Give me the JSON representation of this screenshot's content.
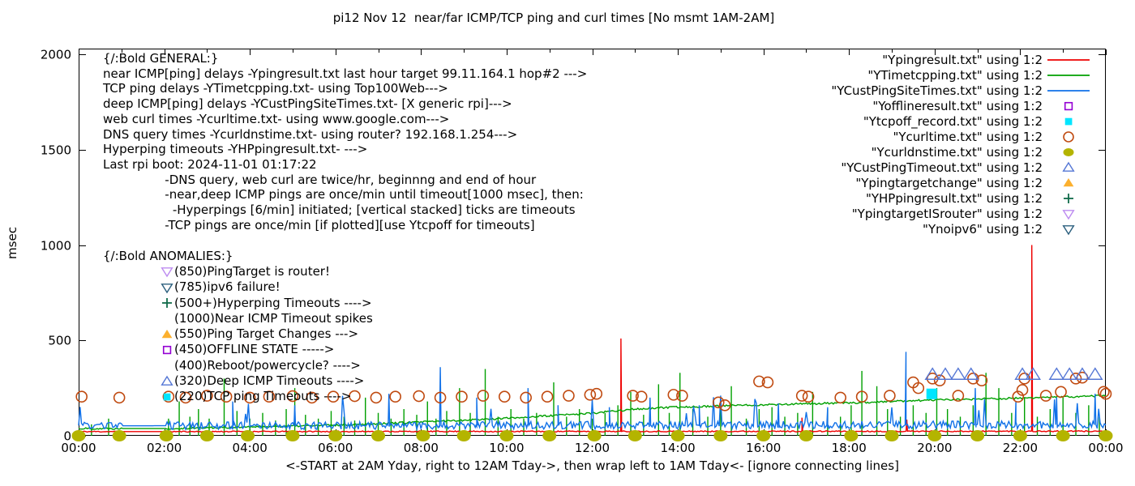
{
  "title": "pi12 Nov 12  near/far ICMP/TCP ping and curl times [No msmt 1AM-2AM]",
  "ylabel": "msec",
  "xlabel": "<-START at 2AM Yday, right to 12AM Tday->, then wrap left to 1AM Tday<- [ignore connecting lines]",
  "annotations": {
    "general_lines": [
      "{/:Bold GENERAL:}",
      "near ICMP[ping] delays -Ypingresult.txt last hour target 99.11.164.1 hop#2 --->",
      "TCP ping delays -YTimetcpping.txt- using Top100Web--->",
      "deep ICMP[ping] delays -YCustPingSiteTimes.txt- [X generic rpi]--->",
      "web curl times -Ycurltime.txt- using www.google.com--->",
      "DNS query times -Ycurldnstime.txt- using router? 192.168.1.254--->",
      "Hyperping timeouts -YHPpingresult.txt- --->",
      "Last rpi boot: 2024-11-01 01:17:22",
      "                -DNS query, web curl are twice/hr, beginnng and end of hour",
      "                -near,deep ICMP pings are once/min until timeout[1000 msec], then:",
      "                  -Hyperpings [6/min] initiated; [vertical stacked] ticks are timeouts",
      "                -TCP pings are once/min [if plotted][use Ytcpoff for timeouts]"
    ],
    "anomalies_title": "{/:Bold ANOMALIES:}",
    "anomalies": [
      {
        "marker": "triangle-down-open",
        "color": "#bd8cf0",
        "text": "(850)PingTarget is router!"
      },
      {
        "marker": "triangle-down-open",
        "color": "#2d607f",
        "text": "(785)ipv6 failure!"
      },
      {
        "marker": "plus",
        "color": "#116b4a",
        "text": "(500+)Hyperping Timeouts ---->"
      },
      {
        "marker": "none",
        "color": "",
        "text": "(1000)Near ICMP Timeout spikes"
      },
      {
        "marker": "triangle-up-filled",
        "color": "#fcb02e",
        "text": "(550)Ping Target Changes --->"
      },
      {
        "marker": "square-open",
        "color": "#9400d3",
        "text": "(450)OFFLINE STATE ----->"
      },
      {
        "marker": "none",
        "color": "",
        "text": "(400)Reboot/powercycle? ---->"
      },
      {
        "marker": "triangle-up-open",
        "color": "#5577d5",
        "text": "(320)Deep ICMP Timeouts ---->"
      },
      {
        "marker": "square-filled",
        "color": "#00e5ff",
        "text": "(220)TCP ping Timeouts ---->"
      }
    ]
  },
  "legend": [
    {
      "label": "\"Ypingresult.txt\" using 1:2",
      "marker": "line",
      "color": "#ee0000"
    },
    {
      "label": "\"YTimetcpping.txt\" using 1:2",
      "marker": "line",
      "color": "#00a000"
    },
    {
      "label": "\"YCustPingSiteTimes.txt\" using 1:2",
      "marker": "line",
      "color": "#1171e8"
    },
    {
      "label": "\"Yofflineresult.txt\" using 1:2",
      "marker": "square-open",
      "color": "#9400d3"
    },
    {
      "label": "\"Ytcpoff_record.txt\" using 1:2",
      "marker": "square-filled",
      "color": "#00e5ff"
    },
    {
      "label": "\"Ycurltime.txt\" using 1:2",
      "marker": "circle-open",
      "color": "#c04a10"
    },
    {
      "label": "\"Ycurldnstime.txt\" using 1:2",
      "marker": "circle-filled",
      "color": "#b4b400"
    },
    {
      "label": "\"YCustPingTimeout.txt\" using 1:2",
      "marker": "triangle-up-open",
      "color": "#5577d5"
    },
    {
      "label": "\"Ypingtargetchange\" using 1:2",
      "marker": "triangle-up-filled",
      "color": "#fcb02e"
    },
    {
      "label": "\"YHPpingresult.txt\" using 1:2",
      "marker": "plus",
      "color": "#116b4a"
    },
    {
      "label": "\"YpingtargetISrouter\" using 1:2",
      "marker": "triangle-down-open",
      "color": "#bd8cf0"
    },
    {
      "label": "\"Ynoipv6\" using 1:2",
      "marker": "triangle-down-open",
      "color": "#2d607f"
    }
  ],
  "chart_data": {
    "type": "line",
    "title": "pi12 Nov 12  near/far ICMP/TCP ping and curl times [No msmt 1AM-2AM]",
    "xlabel": "<-START at 2AM Yday, right to 12AM Tday->, then wrap left to 1AM Tday<- [ignore connecting lines]",
    "ylabel": "msec",
    "xlim": [
      0,
      24
    ],
    "ylim": [
      0,
      2000
    ],
    "grid": false,
    "legend_position": "top-right",
    "xtick_hours": [
      0,
      2,
      4,
      6,
      8,
      10,
      12,
      14,
      16,
      18,
      20,
      22,
      24
    ],
    "xtick_labels": [
      "00:00",
      "02:00",
      "04:00",
      "06:00",
      "08:00",
      "10:00",
      "12:00",
      "14:00",
      "16:00",
      "18:00",
      "20:00",
      "22:00",
      "00:00"
    ],
    "yticks": [
      0,
      500,
      1000,
      1500,
      2000
    ],
    "no_measurement_gap_hours": [
      1.03,
      2.05
    ],
    "series": [
      {
        "name": "Ypingresult.txt",
        "kind": "noisy-line",
        "color": "#ee0000",
        "seed": 11,
        "noise": 3,
        "trend": [
          [
            0,
            22
          ],
          [
            24,
            24
          ]
        ],
        "spikes": [
          [
            12.67,
            510
          ],
          [
            16.9,
            95
          ],
          [
            19.35,
            85
          ],
          [
            22.27,
            1000
          ]
        ]
      },
      {
        "name": "YTimetcpping.txt",
        "kind": "noisy-line",
        "color": "#00a000",
        "seed": 22,
        "noise": 5,
        "trend": [
          [
            0,
            38
          ],
          [
            2,
            38
          ],
          [
            4,
            46
          ],
          [
            6,
            56
          ],
          [
            8,
            72
          ],
          [
            10,
            92
          ],
          [
            12,
            118
          ],
          [
            13,
            140
          ],
          [
            14,
            150
          ],
          [
            16,
            163
          ],
          [
            18,
            172
          ],
          [
            20,
            188
          ],
          [
            22,
            197
          ],
          [
            24,
            210
          ]
        ],
        "spikes": []
      },
      {
        "name": "YCustPingSiteTimes.txt",
        "kind": "noisy-line",
        "color": "#1171e8",
        "seed": 33,
        "noise": 20,
        "trend": [
          [
            0,
            52
          ],
          [
            24,
            58
          ]
        ],
        "burst": [
          0.03,
          50,
          110
        ],
        "spikes": [
          [
            3.6,
            180
          ],
          [
            5.05,
            160
          ],
          [
            7.25,
            220
          ],
          [
            8.45,
            360
          ],
          [
            9.3,
            200
          ],
          [
            10.5,
            250
          ],
          [
            11.2,
            160
          ],
          [
            12.4,
            150
          ],
          [
            13.35,
            200
          ],
          [
            14.5,
            160
          ],
          [
            16.35,
            170
          ],
          [
            17.5,
            150
          ],
          [
            19.33,
            440
          ],
          [
            20.95,
            250
          ],
          [
            21.9,
            180
          ],
          [
            22.85,
            200
          ],
          [
            23.75,
            220
          ]
        ]
      },
      {
        "name": "YHPpingresult.txt",
        "kind": "impulses",
        "color": "#00a000",
        "ticks": [
          [
            0.3,
            60
          ],
          [
            0.7,
            90
          ],
          [
            2.1,
            90
          ],
          [
            2.35,
            180
          ],
          [
            2.6,
            100
          ],
          [
            2.8,
            140
          ],
          [
            3.05,
            90
          ],
          [
            3.4,
            300
          ],
          [
            3.7,
            130
          ],
          [
            4.0,
            90
          ],
          [
            4.3,
            120
          ],
          [
            4.6,
            80
          ],
          [
            4.85,
            140
          ],
          [
            5.05,
            250
          ],
          [
            5.3,
            110
          ],
          [
            5.6,
            90
          ],
          [
            5.9,
            130
          ],
          [
            6.2,
            100
          ],
          [
            6.45,
            80
          ],
          [
            6.7,
            200
          ],
          [
            7.0,
            120
          ],
          [
            7.3,
            90
          ],
          [
            7.6,
            140
          ],
          [
            7.9,
            110
          ],
          [
            8.15,
            180
          ],
          [
            8.35,
            90
          ],
          [
            8.6,
            130
          ],
          [
            8.9,
            250
          ],
          [
            9.15,
            120
          ],
          [
            9.5,
            350
          ],
          [
            9.8,
            100
          ],
          [
            10.1,
            140
          ],
          [
            10.4,
            90
          ],
          [
            10.7,
            120
          ],
          [
            11.1,
            280
          ],
          [
            11.4,
            100
          ],
          [
            11.7,
            140
          ],
          [
            12.0,
            90
          ],
          [
            12.3,
            120
          ],
          [
            12.6,
            160
          ],
          [
            12.9,
            230
          ],
          [
            13.2,
            110
          ],
          [
            13.55,
            270
          ],
          [
            13.8,
            120
          ],
          [
            14.05,
            330
          ],
          [
            14.35,
            140
          ],
          [
            14.7,
            100
          ],
          [
            15.0,
            160
          ],
          [
            15.25,
            260
          ],
          [
            15.6,
            90
          ],
          [
            15.9,
            140
          ],
          [
            16.2,
            150
          ],
          [
            16.5,
            100
          ],
          [
            16.8,
            120
          ],
          [
            17.15,
            230
          ],
          [
            17.5,
            140
          ],
          [
            17.8,
            100
          ],
          [
            18.05,
            160
          ],
          [
            18.3,
            340
          ],
          [
            18.65,
            260
          ],
          [
            18.9,
            140
          ],
          [
            19.2,
            100
          ],
          [
            19.5,
            160
          ],
          [
            19.8,
            120
          ],
          [
            20.05,
            250
          ],
          [
            20.3,
            140
          ],
          [
            20.6,
            100
          ],
          [
            20.9,
            160
          ],
          [
            21.2,
            330
          ],
          [
            21.5,
            250
          ],
          [
            21.8,
            120
          ],
          [
            22.1,
            200
          ],
          [
            22.4,
            100
          ],
          [
            22.7,
            140
          ],
          [
            23.0,
            200
          ],
          [
            23.3,
            120
          ],
          [
            23.6,
            160
          ],
          [
            23.85,
            100
          ]
        ]
      },
      {
        "name": "Ycurltime.txt",
        "kind": "points",
        "marker": "circle-open",
        "color": "#c04a10",
        "size": 6.5,
        "points": [
          [
            0.07,
            205
          ],
          [
            0.95,
            200
          ],
          [
            2.1,
            205
          ],
          [
            2.5,
            200
          ],
          [
            3.0,
            210
          ],
          [
            3.45,
            205
          ],
          [
            4.0,
            200
          ],
          [
            4.45,
            205
          ],
          [
            5.0,
            208
          ],
          [
            5.45,
            200
          ],
          [
            5.95,
            205
          ],
          [
            6.45,
            208
          ],
          [
            6.95,
            200
          ],
          [
            7.4,
            205
          ],
          [
            7.95,
            208
          ],
          [
            8.45,
            200
          ],
          [
            8.95,
            205
          ],
          [
            9.45,
            210
          ],
          [
            9.95,
            205
          ],
          [
            10.45,
            200
          ],
          [
            10.95,
            205
          ],
          [
            11.45,
            210
          ],
          [
            11.95,
            215
          ],
          [
            12.1,
            220
          ],
          [
            12.95,
            210
          ],
          [
            13.15,
            205
          ],
          [
            13.9,
            215
          ],
          [
            14.1,
            210
          ],
          [
            14.95,
            175
          ],
          [
            15.1,
            160
          ],
          [
            15.9,
            285
          ],
          [
            16.1,
            280
          ],
          [
            16.9,
            210
          ],
          [
            17.05,
            205
          ],
          [
            17.8,
            200
          ],
          [
            18.3,
            205
          ],
          [
            18.95,
            210
          ],
          [
            19.5,
            280
          ],
          [
            19.62,
            250
          ],
          [
            19.95,
            300
          ],
          [
            20.12,
            290
          ],
          [
            20.55,
            210
          ],
          [
            20.9,
            300
          ],
          [
            21.1,
            290
          ],
          [
            21.95,
            205
          ],
          [
            22.05,
            240
          ],
          [
            22.1,
            300
          ],
          [
            22.6,
            210
          ],
          [
            22.95,
            230
          ],
          [
            23.3,
            300
          ],
          [
            23.45,
            305
          ],
          [
            23.95,
            230
          ],
          [
            24.0,
            220
          ]
        ]
      },
      {
        "name": "Ycurldnstime.txt",
        "kind": "points",
        "marker": "circle-filled",
        "color": "#b4b400",
        "size": 8,
        "points": [
          [
            0,
            0
          ],
          [
            0.95,
            0
          ],
          [
            2.05,
            0
          ],
          [
            3,
            0
          ],
          [
            3.95,
            0
          ],
          [
            5,
            0
          ],
          [
            6,
            0
          ],
          [
            7,
            0
          ],
          [
            8.05,
            0
          ],
          [
            9,
            0
          ],
          [
            10,
            0
          ],
          [
            11,
            0
          ],
          [
            12.05,
            0
          ],
          [
            13,
            0
          ],
          [
            14,
            0
          ],
          [
            15,
            0
          ],
          [
            16,
            0
          ],
          [
            17,
            0
          ],
          [
            18.05,
            0
          ],
          [
            19,
            0
          ],
          [
            20,
            0
          ],
          [
            21,
            0
          ],
          [
            22,
            0
          ],
          [
            23,
            0
          ],
          [
            24,
            0
          ]
        ]
      },
      {
        "name": "YCustPingTimeout.txt",
        "kind": "points",
        "marker": "triangle-up-open",
        "color": "#5577d5",
        "size": 8,
        "points": [
          [
            19.95,
            320
          ],
          [
            20.25,
            320
          ],
          [
            20.55,
            320
          ],
          [
            20.85,
            320
          ],
          [
            22.05,
            320
          ],
          [
            22.3,
            320
          ],
          [
            22.85,
            320
          ],
          [
            23.15,
            320
          ],
          [
            23.45,
            320
          ],
          [
            23.75,
            320
          ]
        ]
      },
      {
        "name": "Ytcpoff_record.txt",
        "kind": "points",
        "marker": "square-filled",
        "color": "#00e5ff",
        "size": 9,
        "points": [
          [
            19.93,
            220
          ]
        ]
      },
      {
        "name": "Yofflineresult.txt",
        "kind": "points",
        "marker": "square-open",
        "color": "#9400d3",
        "size": 8,
        "points": []
      },
      {
        "name": "Ypingtargetchange",
        "kind": "points",
        "marker": "triangle-up-filled",
        "color": "#fcb02e",
        "size": 8,
        "points": []
      },
      {
        "name": "YpingtargetISrouter",
        "kind": "points",
        "marker": "triangle-down-open",
        "color": "#bd8cf0",
        "size": 8,
        "points": []
      },
      {
        "name": "Ynoipv6",
        "kind": "points",
        "marker": "triangle-down-open",
        "color": "#2d607f",
        "size": 8,
        "points": []
      }
    ]
  }
}
